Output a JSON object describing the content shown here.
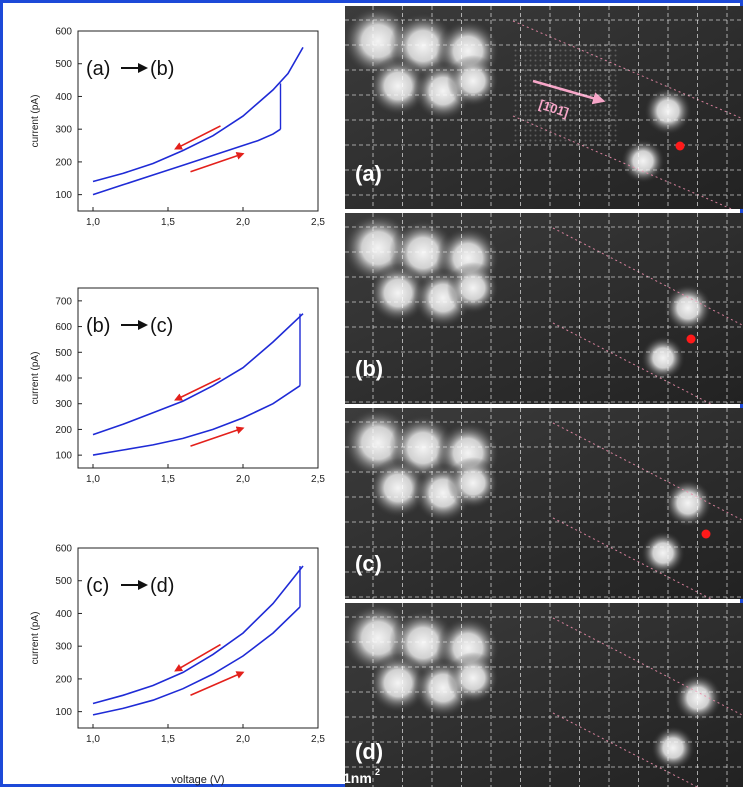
{
  "figure": {
    "border_color": "#1d49d8",
    "curve_color": "#1f2bd6",
    "arrow_color": "#e3201b",
    "xlabel": "voltage (V)",
    "ylabel": "current (pA)",
    "scale_bar": "1nm",
    "scale_sup": "2",
    "lattice_label": "[1̄01̄]"
  },
  "chart_data": [
    {
      "type": "line",
      "panel_label": "(a)",
      "transition_from": "(a)",
      "transition_to": "(b)",
      "xlim": [
        0.9,
        2.5
      ],
      "ylim": [
        50,
        600
      ],
      "x_ticks": [
        "1,0",
        "1,5",
        "2,0",
        "2,5"
      ],
      "y_ticks": [
        "100",
        "200",
        "300",
        "400",
        "500",
        "600"
      ],
      "y_tick_values": [
        100,
        200,
        300,
        400,
        500,
        600
      ],
      "forward": {
        "x": [
          1.0,
          1.2,
          1.4,
          1.6,
          1.8,
          2.0,
          2.1,
          2.2,
          2.25
        ],
        "y": [
          100,
          130,
          160,
          190,
          220,
          250,
          265,
          285,
          300
        ]
      },
      "jump": {
        "x": [
          2.25,
          2.25
        ],
        "y": [
          300,
          440
        ]
      },
      "reverse": {
        "x": [
          1.0,
          1.2,
          1.4,
          1.6,
          1.8,
          2.0,
          2.1,
          2.2,
          2.3,
          2.4
        ],
        "y": [
          140,
          165,
          195,
          235,
          280,
          340,
          380,
          420,
          470,
          550
        ]
      }
    },
    {
      "type": "line",
      "panel_label": "(b)",
      "transition_from": "(b)",
      "transition_to": "(c)",
      "xlim": [
        0.9,
        2.5
      ],
      "ylim": [
        50,
        750
      ],
      "x_ticks": [
        "1,0",
        "1,5",
        "2,0",
        "2,5"
      ],
      "y_ticks": [
        "100",
        "200",
        "300",
        "400",
        "500",
        "600",
        "700"
      ],
      "y_tick_values": [
        100,
        200,
        300,
        400,
        500,
        600,
        700
      ],
      "forward": {
        "x": [
          1.0,
          1.2,
          1.4,
          1.6,
          1.8,
          2.0,
          2.2,
          2.38
        ],
        "y": [
          100,
          120,
          140,
          165,
          200,
          245,
          300,
          370
        ]
      },
      "jump": {
        "x": [
          2.38,
          2.38
        ],
        "y": [
          370,
          650
        ]
      },
      "reverse": {
        "x": [
          1.0,
          1.2,
          1.4,
          1.6,
          1.8,
          2.0,
          2.2,
          2.4
        ],
        "y": [
          180,
          220,
          265,
          310,
          370,
          440,
          540,
          650
        ]
      }
    },
    {
      "type": "line",
      "panel_label": "(c)",
      "transition_from": "(c)",
      "transition_to": "(d)",
      "xlim": [
        0.9,
        2.5
      ],
      "ylim": [
        50,
        600
      ],
      "x_ticks": [
        "1,0",
        "1,5",
        "2,0",
        "2,5"
      ],
      "y_ticks": [
        "100",
        "200",
        "300",
        "400",
        "500",
        "600"
      ],
      "y_tick_values": [
        100,
        200,
        300,
        400,
        500,
        600
      ],
      "forward": {
        "x": [
          1.0,
          1.2,
          1.4,
          1.6,
          1.8,
          2.0,
          2.2,
          2.38
        ],
        "y": [
          90,
          110,
          135,
          170,
          215,
          270,
          340,
          420
        ]
      },
      "jump": {
        "x": [
          2.38,
          2.38
        ],
        "y": [
          420,
          545
        ]
      },
      "reverse": {
        "x": [
          1.0,
          1.2,
          1.4,
          1.6,
          1.8,
          2.0,
          2.2,
          2.4
        ],
        "y": [
          125,
          150,
          180,
          220,
          275,
          340,
          430,
          545
        ]
      }
    }
  ],
  "stm_panels": [
    {
      "label": "(a)",
      "marker": true,
      "lattice": true
    },
    {
      "label": "(b)",
      "marker": true,
      "lattice": false
    },
    {
      "label": "(c)",
      "marker": true,
      "lattice": false
    },
    {
      "label": "(d)",
      "marker": false,
      "lattice": false
    }
  ]
}
